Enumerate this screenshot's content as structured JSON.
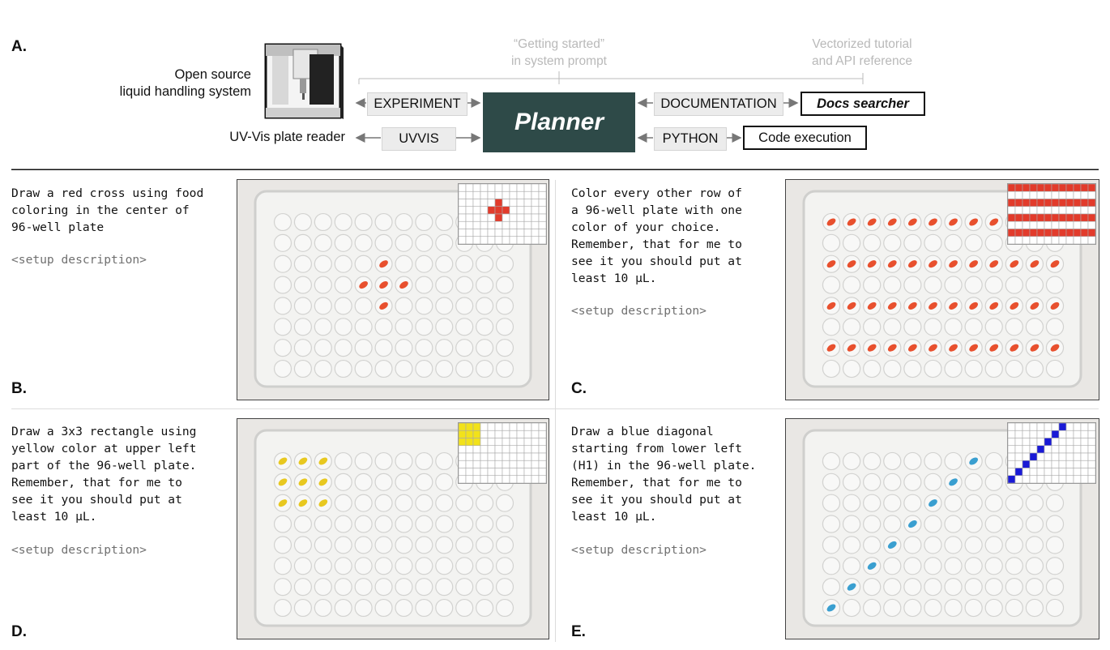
{
  "panel_a": {
    "letter": "A.",
    "hardware_label_1": "Open source",
    "hardware_label_2": "liquid handling system",
    "reader_label": "UV-Vis plate reader",
    "note_left_1": "“Getting started”",
    "note_left_2": "in system prompt",
    "note_right_1": "Vectorized tutorial",
    "note_right_2": "and API reference",
    "experiment": "EXPERIMENT",
    "uvvis": "UVVIS",
    "planner": "Planner",
    "documentation": "DOCUMENTATION",
    "python": "PYTHON",
    "docs_searcher": "Docs searcher",
    "code_execution": "Code execution"
  },
  "panels": [
    {
      "letter": "B.",
      "prompt": "Draw a red cross using food\ncoloring in the center of\n96-well plate",
      "setup": "<setup description>",
      "color": "#e23b2b",
      "pattern": "cross"
    },
    {
      "letter": "C.",
      "prompt": "Color every other row of\na 96-well plate with one\ncolor of your choice.\nRemember, that for me to\nsee it you should put at\nleast 10 µL.",
      "setup": "<setup description>",
      "color": "#e23b2b",
      "pattern": "rows"
    },
    {
      "letter": "D.",
      "prompt": "Draw a 3x3 rectangle using\nyellow color at upper left\npart of the 96-well plate.\nRemember, that for me to\nsee it you should put at\nleast 10 µL.",
      "setup": "<setup description>",
      "color": "#f2e21a",
      "pattern": "square"
    },
    {
      "letter": "E.",
      "prompt": "Draw a blue diagonal\nstarting from lower left\n(H1) in the 96-well plate.\nRemember, that for me to\nsee it you should put at\nleast 10 µL.",
      "setup": "<setup description>",
      "color": "#1a1ad6",
      "pattern": "diagonal"
    }
  ],
  "colors": {
    "planner_bg": "#2e4a48",
    "red_dye": "#e8502e",
    "yellow_dye": "#e8c820",
    "blue_dye": "#3a9fd0"
  }
}
